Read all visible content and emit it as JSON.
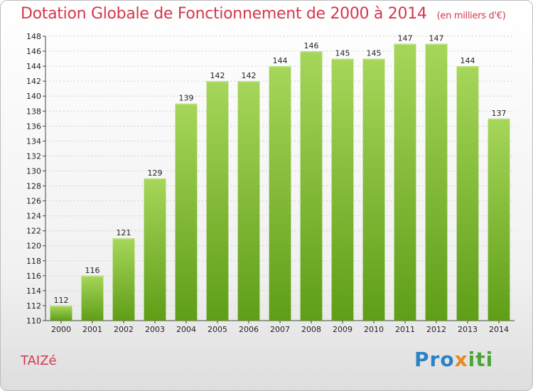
{
  "header": {
    "title": "Dotation Globale de Fonctionnement de 2000 à 2014",
    "unit": "(en milliers d'€)"
  },
  "footer": {
    "commune": "TAIZé",
    "logo": {
      "p1": "Pro",
      "p2": "x",
      "p3": "iti"
    }
  },
  "colors": {
    "bar_light": "#a6d65a",
    "bar_dark": "#5f9e17",
    "title": "#d2384e"
  },
  "chart_data": {
    "type": "bar",
    "title": "Dotation Globale de Fonctionnement de 2000 à 2014",
    "subtitle": "(en milliers d'€)",
    "xlabel": "",
    "ylabel": "",
    "categories": [
      "2000",
      "2001",
      "2002",
      "2003",
      "2004",
      "2005",
      "2006",
      "2007",
      "2008",
      "2009",
      "2010",
      "2011",
      "2012",
      "2013",
      "2014"
    ],
    "values": [
      112,
      116,
      121,
      129,
      139,
      142,
      142,
      144,
      146,
      145,
      145,
      147,
      147,
      144,
      137
    ],
    "ylim": [
      110,
      148
    ],
    "ytick_step": 2,
    "grid": true,
    "legend": "none"
  }
}
